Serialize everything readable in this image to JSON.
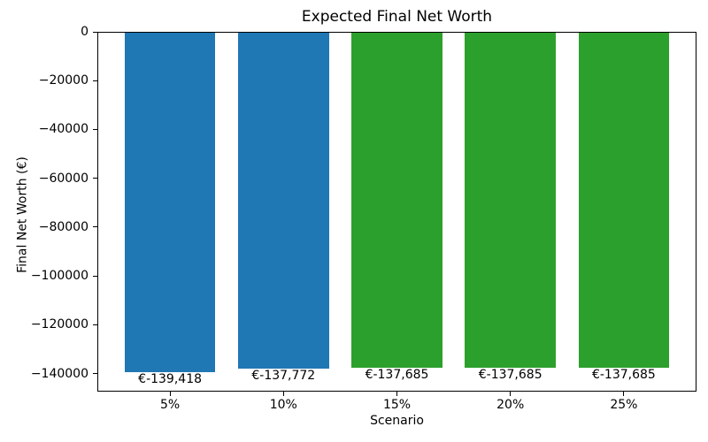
{
  "figure": {
    "background": "#ffffff",
    "axis_color": "#000000",
    "text_color": "#000000"
  },
  "chart_data": {
    "type": "bar",
    "title": "Expected Final Net Worth",
    "xlabel": "Scenario",
    "ylabel": "Final Net Worth (€)",
    "categories": [
      "5%",
      "10%",
      "15%",
      "20%",
      "25%"
    ],
    "values": [
      -139418,
      -137772,
      -137685,
      -137685,
      -137685
    ],
    "bar_labels": [
      "€-139,418",
      "€-137,772",
      "€-137,685",
      "€-137,685",
      "€-137,685"
    ],
    "bar_colors": [
      "#1f77b4",
      "#1f77b4",
      "#2ca02c",
      "#2ca02c",
      "#2ca02c"
    ],
    "yticks": [
      0,
      -20000,
      -40000,
      -60000,
      -80000,
      -100000,
      -120000,
      -140000
    ],
    "ytick_labels": [
      "0",
      "−20000",
      "−40000",
      "−60000",
      "−80000",
      "−100000",
      "−120000",
      "−140000"
    ],
    "ylim": [
      -147385,
      0
    ],
    "xlim": [
      -0.64,
      4.64
    ],
    "bar_width": 0.8,
    "grid": false,
    "legend": null
  }
}
